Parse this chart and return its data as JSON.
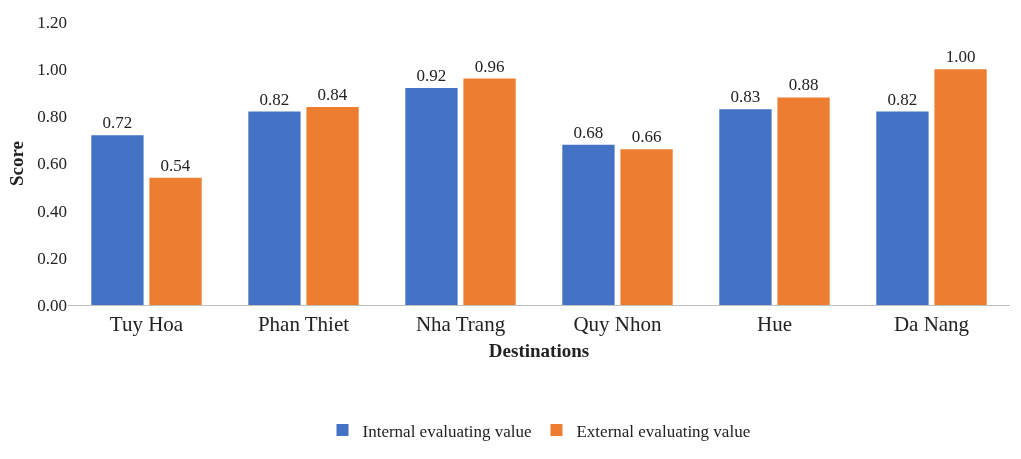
{
  "chart_data": {
    "type": "bar",
    "xlabel": "Destinations",
    "ylabel": "Score",
    "categories": [
      "Tuy Hoa",
      "Phan Thiet",
      "Nha Trang",
      "Quy Nhon",
      "Hue",
      "Da Nang"
    ],
    "series": [
      {
        "name": "Internal evaluating value",
        "color": "#4472c4",
        "values": [
          0.72,
          0.82,
          0.92,
          0.68,
          0.83,
          0.82
        ],
        "value_labels": [
          "0.72",
          "0.82",
          "0.92",
          "0.68",
          "0.83",
          "0.82"
        ]
      },
      {
        "name": "External evaluating value",
        "color": "#ed7d31",
        "values": [
          0.54,
          0.84,
          0.96,
          0.66,
          0.88,
          1.0
        ],
        "value_labels": [
          "0.54",
          "0.84",
          "0.96",
          "0.66",
          "0.88",
          "1.00"
        ]
      }
    ],
    "ylim": [
      0,
      1.2
    ],
    "yticks": [
      {
        "value": 0,
        "label": "0.00"
      },
      {
        "value": 0.2,
        "label": "0.20"
      },
      {
        "value": 0.4,
        "label": "0.40"
      },
      {
        "value": 0.6,
        "label": "0.60"
      },
      {
        "value": 0.8,
        "label": "0.80"
      },
      {
        "value": 1,
        "label": "1.00"
      },
      {
        "value": 1.2,
        "label": "1.20"
      }
    ],
    "grid": false,
    "legend": "bottom"
  }
}
